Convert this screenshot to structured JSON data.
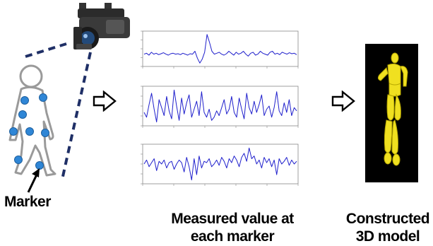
{
  "labels": {
    "marker": "Marker",
    "measured_line1": "Measured value  at",
    "measured_line2": "each marker",
    "constructed_line1": "Constructed",
    "constructed_line2": "3D model"
  },
  "icons": {
    "camera": "video-camera-icon",
    "person": "person-with-markers-icon",
    "arrow": "outline-right-arrow-icon",
    "model": "3d-skeleton-model-icon"
  },
  "colors": {
    "marker_dot": "#2f86d6",
    "sight_line": "#1f2f66",
    "signal": "#1f1fcc",
    "model_body": "#f0e020",
    "model_bg": "#000000"
  },
  "chart_data": [
    {
      "type": "line",
      "series": [
        {
          "values": [
            0.0,
            0.1,
            -0.1,
            0.2,
            0.0,
            0.1,
            -0.05,
            0.05,
            0.15,
            0.0,
            -0.1,
            0.05,
            0.1,
            0.0,
            0.05,
            -0.05,
            0.1,
            0.0,
            -0.1,
            0.05,
            0.0,
            0.3,
            -0.4,
            -0.9,
            -0.5,
            0.2,
            2.0,
            1.2,
            0.3,
            0.0,
            0.1,
            0.2,
            0.0,
            -0.1,
            0.05,
            0.3,
            0.1,
            -0.1,
            0.2,
            0.0,
            0.1,
            0.3,
            0.0,
            -0.2,
            0.1,
            0.2,
            -0.1,
            0.0,
            0.3,
            0.1,
            0.0,
            -0.1,
            0.2,
            0.3,
            0.0,
            0.1,
            -0.05,
            0.2,
            0.1,
            0.0,
            0.15,
            0.05,
            0.1,
            -0.05
          ]
        }
      ]
    },
    {
      "type": "line",
      "series": [
        {
          "values": [
            0.0,
            -0.3,
            0.5,
            1.2,
            0.2,
            -0.6,
            0.8,
            0.3,
            -0.2,
            1.0,
            0.1,
            -0.4,
            1.4,
            0.4,
            -0.5,
            0.9,
            -0.1,
            0.6,
            1.1,
            -0.3,
            0.2,
            0.7,
            -0.2,
            1.3,
            0.0,
            -0.3,
            0.2,
            -0.5,
            -0.3,
            0.1,
            -0.2,
            0.3,
            0.8,
            -0.1,
            0.2,
            1.0,
            0.0,
            -0.3,
            0.9,
            0.2,
            -0.4,
            1.2,
            0.3,
            -0.1,
            0.7,
            0.0,
            0.5,
            1.1,
            -0.2,
            0.2,
            0.4,
            -0.3,
            0.3,
            1.3,
            0.1,
            -0.2,
            0.6,
            0.0,
            0.8,
            -0.2,
            0.3,
            0.1
          ]
        }
      ]
    },
    {
      "type": "line",
      "series": [
        {
          "values": [
            0.0,
            0.3,
            -0.2,
            0.1,
            0.4,
            -0.5,
            0.2,
            0.0,
            0.3,
            -0.3,
            0.1,
            0.2,
            -0.4,
            0.0,
            0.3,
            0.1,
            -0.6,
            0.5,
            -0.2,
            -1.2,
            0.4,
            -0.8,
            0.6,
            -0.3,
            0.2,
            0.1,
            0.4,
            -0.2,
            0.0,
            0.3,
            -0.1,
            0.5,
            0.2,
            -0.3,
            0.4,
            0.1,
            0.6,
            0.3,
            -0.2,
            0.5,
            0.8,
            0.2,
            1.2,
            0.4,
            0.6,
            0.0,
            0.3,
            -0.3,
            0.5,
            0.1,
            0.4,
            -0.2,
            0.3,
            -0.8,
            0.4,
            0.0,
            0.2,
            0.5,
            -0.1,
            0.3,
            0.0,
            0.2
          ]
        }
      ]
    }
  ]
}
